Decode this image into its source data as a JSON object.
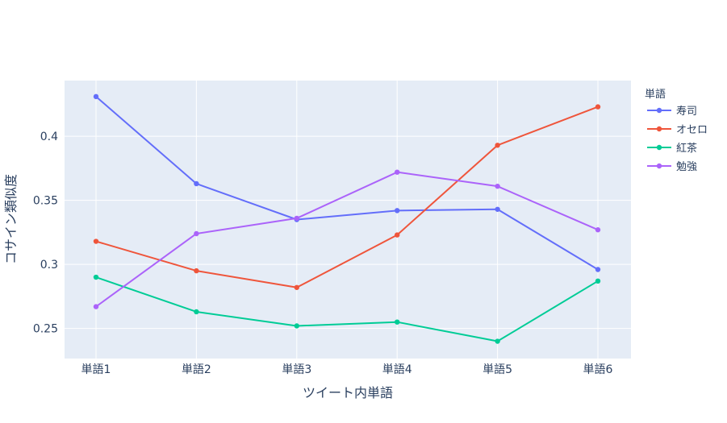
{
  "chart_data": {
    "type": "line",
    "title": "",
    "xlabel": "ツイート内単語",
    "ylabel": "コサイン類似度",
    "categories": [
      "単語1",
      "単語2",
      "単語3",
      "単語4",
      "単語5",
      "単語6"
    ],
    "yticks": [
      "0.25",
      "0.3",
      "0.35",
      "0.4"
    ],
    "ytick_values": [
      0.25,
      0.3,
      0.35,
      0.4
    ],
    "ylim": [
      0.2265,
      0.4435
    ],
    "grid": true,
    "legend": {
      "title": "単語",
      "placement": "top-right outside"
    },
    "series": [
      {
        "name": "寿司",
        "color": "#636efa",
        "values": [
          0.431,
          0.363,
          0.335,
          0.342,
          0.343,
          0.296
        ]
      },
      {
        "name": "オセロ",
        "color": "#ef553b",
        "values": [
          0.318,
          0.295,
          0.282,
          0.323,
          0.393,
          0.423
        ]
      },
      {
        "name": "紅茶",
        "color": "#00cc96",
        "values": [
          0.29,
          0.263,
          0.252,
          0.255,
          0.24,
          0.287
        ]
      },
      {
        "name": "勉強",
        "color": "#ab63fa",
        "values": [
          0.267,
          0.324,
          0.336,
          0.372,
          0.361,
          0.327
        ]
      }
    ]
  }
}
